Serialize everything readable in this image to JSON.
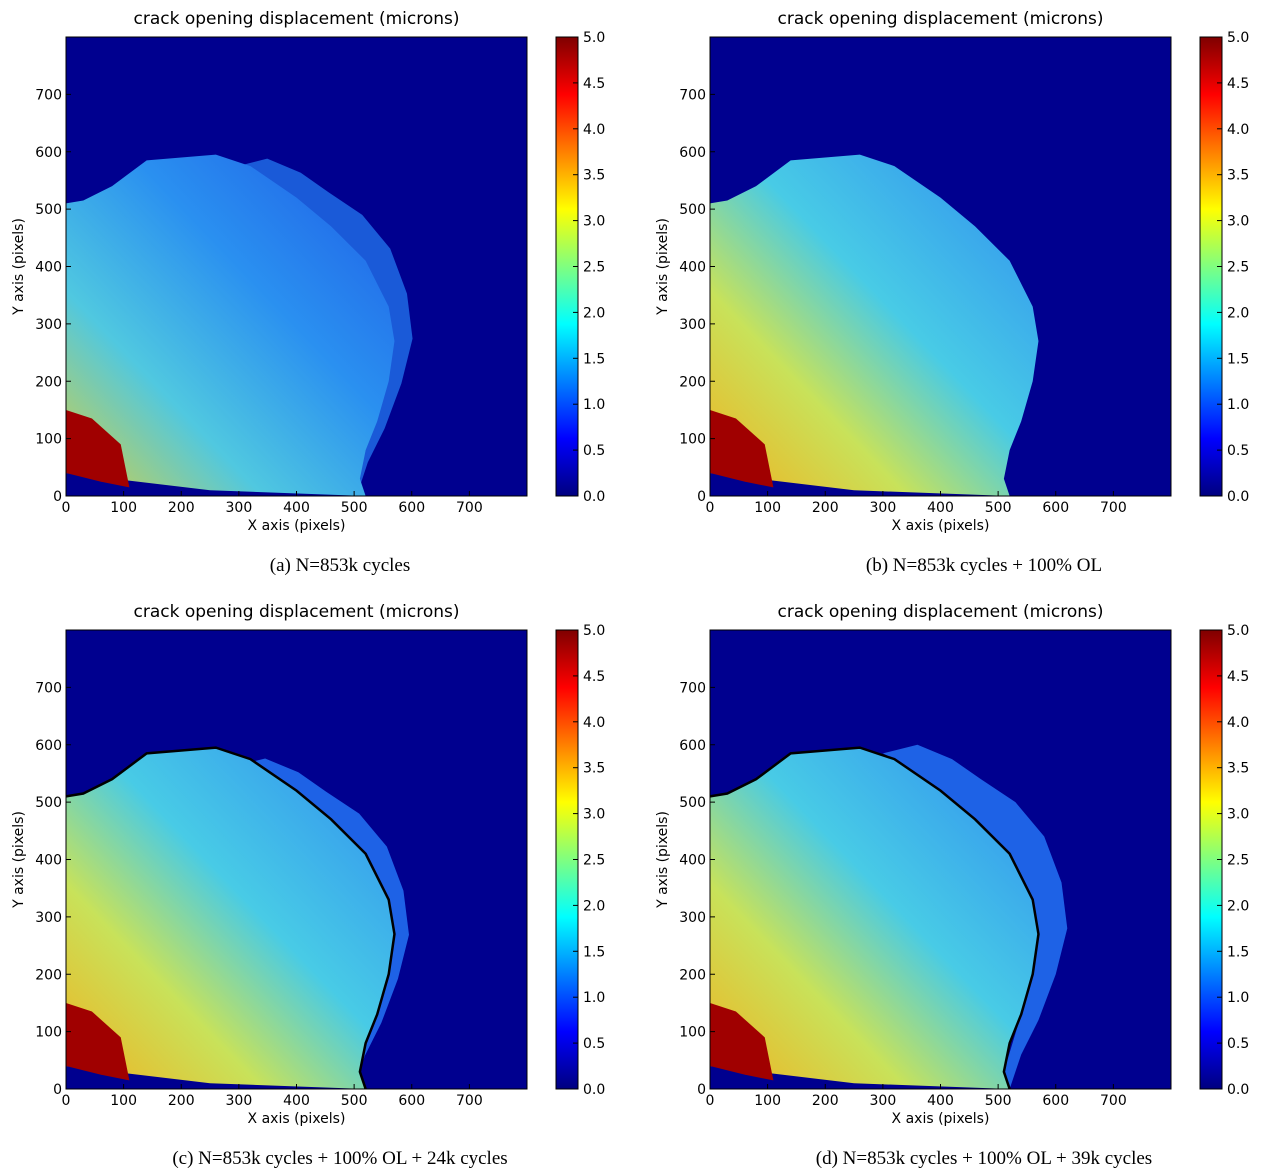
{
  "chart_data": [
    {
      "type": "heatmap",
      "title": "crack opening displacement (microns)",
      "xlabel": "X axis (pixels)",
      "ylabel": "Y axis (pixels)",
      "caption": "(a)  N=853k cycles",
      "xlim": [
        0,
        800
      ],
      "ylim": [
        0,
        800
      ],
      "xticks": [
        0,
        100,
        200,
        300,
        400,
        500,
        600,
        700
      ],
      "yticks": [
        0,
        100,
        200,
        300,
        400,
        500,
        600,
        700
      ],
      "colormap": "jet",
      "clim": [
        0,
        5
      ],
      "cticks": [
        {
          "value": 0,
          "label": "0.0"
        },
        {
          "value": 0.5,
          "label": "0.5"
        },
        {
          "value": 1,
          "label": "1.0"
        },
        {
          "value": 1.5,
          "label": "1.5"
        },
        {
          "value": 2,
          "label": "2.0"
        },
        {
          "value": 2.5,
          "label": "2.5"
        },
        {
          "value": 3,
          "label": "3.0"
        },
        {
          "value": 3.5,
          "label": "3.5"
        },
        {
          "value": 4,
          "label": "4.0"
        },
        {
          "value": 4.5,
          "label": "4.5"
        },
        {
          "value": 5,
          "label": "5.0"
        }
      ]
    },
    {
      "type": "heatmap",
      "title": "crack opening displacement (microns)",
      "xlabel": "X axis (pixels)",
      "ylabel": "Y axis (pixels)",
      "caption": "(b)  N=853k cycles + 100% OL",
      "xlim": [
        0,
        800
      ],
      "ylim": [
        0,
        800
      ],
      "xticks": [
        0,
        100,
        200,
        300,
        400,
        500,
        600,
        700
      ],
      "yticks": [
        0,
        100,
        200,
        300,
        400,
        500,
        600,
        700
      ],
      "colormap": "jet",
      "clim": [
        0,
        5
      ],
      "cticks": [
        {
          "value": 0,
          "label": "0.0"
        },
        {
          "value": 0.5,
          "label": "0.5"
        },
        {
          "value": 1,
          "label": "1.0"
        },
        {
          "value": 1.5,
          "label": "1.5"
        },
        {
          "value": 2,
          "label": "2.0"
        },
        {
          "value": 2.5,
          "label": "2.5"
        },
        {
          "value": 3,
          "label": "3.0"
        },
        {
          "value": 3.5,
          "label": "3.5"
        },
        {
          "value": 4,
          "label": "4.0"
        },
        {
          "value": 4.5,
          "label": "4.5"
        },
        {
          "value": 5,
          "label": "5.0"
        }
      ]
    },
    {
      "type": "heatmap",
      "title": "crack opening displacement (microns)",
      "xlabel": "X axis (pixels)",
      "ylabel": "Y axis (pixels)",
      "caption": "(c)  N=853k cycles + 100% OL + 24k cycles",
      "xlim": [
        0,
        800
      ],
      "ylim": [
        0,
        800
      ],
      "xticks": [
        0,
        100,
        200,
        300,
        400,
        500,
        600,
        700
      ],
      "yticks": [
        0,
        100,
        200,
        300,
        400,
        500,
        600,
        700
      ],
      "colormap": "jet",
      "clim": [
        0,
        5
      ],
      "cticks": [
        {
          "value": 0,
          "label": "0.0"
        },
        {
          "value": 0.5,
          "label": "0.5"
        },
        {
          "value": 1,
          "label": "1.0"
        },
        {
          "value": 1.5,
          "label": "1.5"
        },
        {
          "value": 2,
          "label": "2.0"
        },
        {
          "value": 2.5,
          "label": "2.5"
        },
        {
          "value": 3,
          "label": "3.0"
        },
        {
          "value": 3.5,
          "label": "3.5"
        },
        {
          "value": 4,
          "label": "4.0"
        },
        {
          "value": 4.5,
          "label": "4.5"
        },
        {
          "value": 5,
          "label": "5.0"
        }
      ]
    },
    {
      "type": "heatmap",
      "title": "crack opening displacement (microns)",
      "xlabel": "X axis (pixels)",
      "ylabel": "Y axis (pixels)",
      "caption": "(d)  N=853k cycles + 100% OL + 39k cycles",
      "xlim": [
        0,
        800
      ],
      "ylim": [
        0,
        800
      ],
      "xticks": [
        0,
        100,
        200,
        300,
        400,
        500,
        600,
        700
      ],
      "yticks": [
        0,
        100,
        200,
        300,
        400,
        500,
        600,
        700
      ],
      "colormap": "jet",
      "clim": [
        0,
        5
      ],
      "cticks": [
        {
          "value": 0,
          "label": "0.0"
        },
        {
          "value": 0.5,
          "label": "0.5"
        },
        {
          "value": 1,
          "label": "1.0"
        },
        {
          "value": 1.5,
          "label": "1.5"
        },
        {
          "value": 2,
          "label": "2.0"
        },
        {
          "value": 2.5,
          "label": "2.5"
        },
        {
          "value": 3,
          "label": "3.0"
        },
        {
          "value": 3.5,
          "label": "3.5"
        },
        {
          "value": 4,
          "label": "4.0"
        },
        {
          "value": 4.5,
          "label": "4.5"
        },
        {
          "value": 5,
          "label": "5.0"
        }
      ]
    }
  ]
}
